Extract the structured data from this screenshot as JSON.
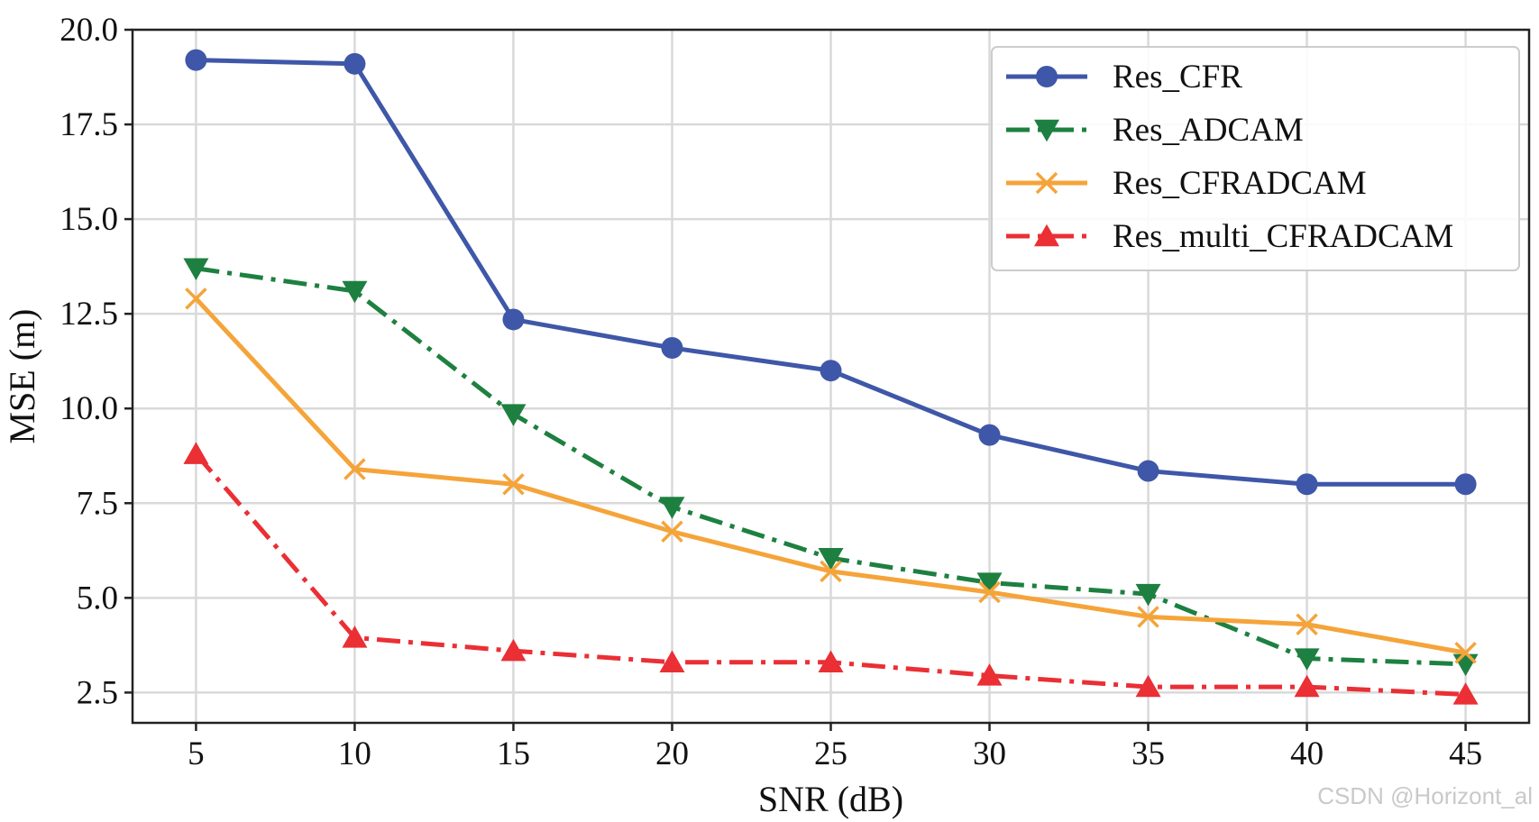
{
  "chart_data": {
    "type": "line",
    "title": "",
    "xlabel": "SNR (dB)",
    "ylabel": "MSE (m)",
    "x": [
      5,
      10,
      15,
      20,
      25,
      30,
      35,
      40,
      45
    ],
    "xlim": [
      3,
      47
    ],
    "ylim": [
      1.7,
      20.0
    ],
    "xticks": [
      "5",
      "10",
      "15",
      "20",
      "25",
      "30",
      "35",
      "40",
      "45"
    ],
    "yticks": [
      "2.5",
      "5.0",
      "7.5",
      "10.0",
      "12.5",
      "15.0",
      "17.5",
      "20.0"
    ],
    "grid": true,
    "legend_position": "top-right",
    "series": [
      {
        "name": "Res_CFR",
        "color": "#3f57a8",
        "linestyle": "solid",
        "marker": "circle",
        "values": [
          19.2,
          19.1,
          12.35,
          11.6,
          11.0,
          9.3,
          8.35,
          8.0,
          8.0
        ]
      },
      {
        "name": "Res_ADCAM",
        "color": "#1e8040",
        "linestyle": "dashdot",
        "marker": "triangle-down",
        "values": [
          13.7,
          13.1,
          9.85,
          7.4,
          6.05,
          5.4,
          5.1,
          3.4,
          3.25
        ]
      },
      {
        "name": "Res_CFRADCAM",
        "color": "#f5a43a",
        "linestyle": "solid",
        "marker": "x",
        "values": [
          12.9,
          8.4,
          8.0,
          6.75,
          5.7,
          5.15,
          4.5,
          4.3,
          3.55
        ]
      },
      {
        "name": "Res_multi_CFRADCAM",
        "color": "#ea2f35",
        "linestyle": "dashdot",
        "marker": "triangle-up",
        "values": [
          8.8,
          3.95,
          3.6,
          3.3,
          3.3,
          2.95,
          2.65,
          2.65,
          2.45
        ]
      }
    ]
  },
  "watermark": "CSDN @Horizont_al"
}
